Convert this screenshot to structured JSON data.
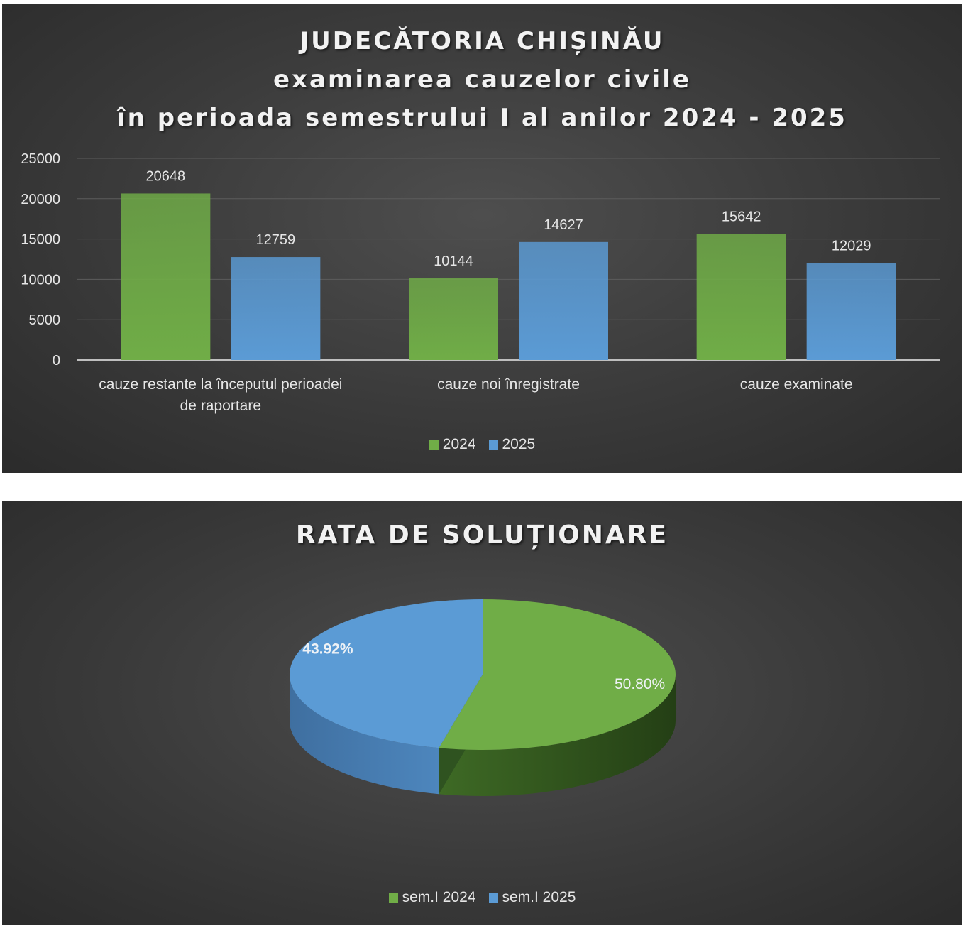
{
  "colors": {
    "series_2024": "#70ad47",
    "series_2025": "#5b9bd5",
    "axis_text": "#e6e6e6",
    "grid": "#5c5c5c"
  },
  "bar_panel": {
    "title_lines": [
      "JUDECĂTORIA CHIȘINĂU",
      "examinarea cauzelor civile",
      "în perioada semestrului I al anilor 2024 - 2025"
    ],
    "legend": [
      "2024",
      "2025"
    ]
  },
  "pie_panel": {
    "title": "RATA DE SOLUȚIONARE",
    "legend": [
      "sem.I 2024",
      "sem.I 2025"
    ]
  },
  "chart_data": [
    {
      "type": "bar",
      "title": "JUDECĂTORIA CHIȘINĂU examinarea cauzelor civile în perioada semestrului I al anilor 2024 - 2025",
      "categories": [
        [
          "cauze restante la începutul perioadei",
          "de raportare"
        ],
        [
          "cauze noi înregistrate"
        ],
        [
          "cauze examinate"
        ]
      ],
      "series": [
        {
          "name": "2024",
          "values": [
            20648,
            10144,
            15642
          ]
        },
        {
          "name": "2025",
          "values": [
            12759,
            14627,
            12029
          ]
        }
      ],
      "ylim": [
        0,
        25000
      ],
      "yticks": [
        0,
        5000,
        10000,
        15000,
        20000,
        25000
      ],
      "grid": true,
      "legend": "bottom"
    },
    {
      "type": "pie",
      "title": "RATA DE SOLUȚIONARE",
      "labels": [
        "sem.I 2024",
        "sem.I 2025"
      ],
      "values": [
        50.8,
        43.92
      ],
      "value_labels": [
        "50.80%",
        "43.92%"
      ],
      "legend": "bottom"
    }
  ]
}
